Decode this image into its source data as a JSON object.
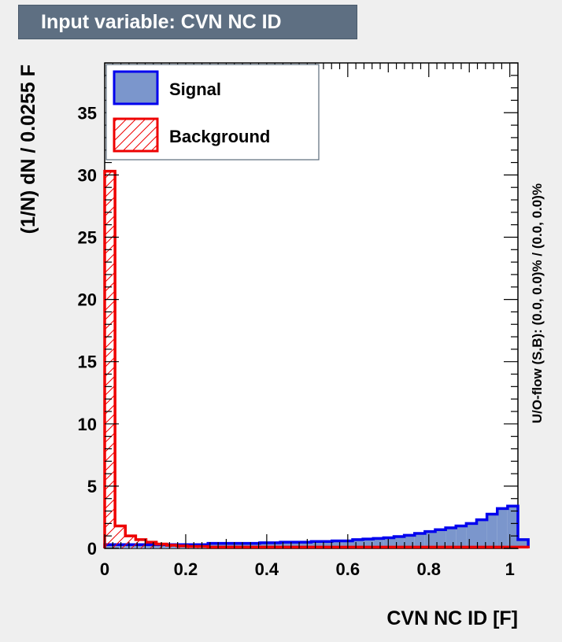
{
  "title": "Input variable: CVN NC ID",
  "chart_data": {
    "type": "histogram",
    "title": "Input variable: CVN NC ID",
    "xlabel": "CVN NC ID  [F]",
    "ylabel": "(1/N) dN / 0.0255 F",
    "side_label": "U/O-flow (S,B): (0.0, 0.0)% / (0.0, 0.0)%",
    "xlim": [
      0,
      1.02
    ],
    "ylim": [
      0,
      39
    ],
    "x_ticks": [
      0,
      0.2,
      0.4,
      0.6,
      0.8,
      1
    ],
    "x_tick_labels": [
      "0",
      "0.2",
      "0.4",
      "0.6",
      "0.8",
      "1"
    ],
    "y_ticks": [
      0,
      5,
      10,
      15,
      20,
      25,
      30,
      35
    ],
    "y_tick_labels": [
      "0",
      "5",
      "10",
      "15",
      "20",
      "25",
      "30",
      "35"
    ],
    "bin_width": 0.0255,
    "bin_edges_start": 0,
    "legend": {
      "placement": "top-left",
      "entries": [
        {
          "label": "Signal",
          "style": "filled"
        },
        {
          "label": "Background",
          "style": "hatched"
        }
      ]
    },
    "series": [
      {
        "name": "Signal",
        "color": "#0000ee",
        "fill": "#7b96cc",
        "values": [
          0.3,
          0.3,
          0.3,
          0.3,
          0.3,
          0.3,
          0.3,
          0.3,
          0.3,
          0.3,
          0.4,
          0.4,
          0.4,
          0.4,
          0.4,
          0.45,
          0.45,
          0.5,
          0.5,
          0.5,
          0.55,
          0.55,
          0.6,
          0.6,
          0.7,
          0.75,
          0.8,
          0.85,
          0.95,
          1.05,
          1.2,
          1.35,
          1.5,
          1.65,
          1.8,
          2.0,
          2.3,
          2.75,
          3.2,
          3.4,
          0.7
        ]
      },
      {
        "name": "Background",
        "color": "#ee0000",
        "fill": "hatch",
        "values": [
          30.3,
          1.8,
          1.0,
          0.7,
          0.5,
          0.35,
          0.25,
          0.2,
          0.15,
          0.15,
          0.1,
          0.1,
          0.1,
          0.1,
          0.1,
          0.1,
          0.1,
          0.1,
          0.1,
          0.1,
          0.1,
          0.1,
          0.1,
          0.1,
          0.1,
          0.1,
          0.1,
          0.1,
          0.1,
          0.1,
          0.1,
          0.1,
          0.1,
          0.1,
          0.1,
          0.1,
          0.1,
          0.1,
          0.1,
          0.1,
          0.1
        ]
      }
    ]
  }
}
